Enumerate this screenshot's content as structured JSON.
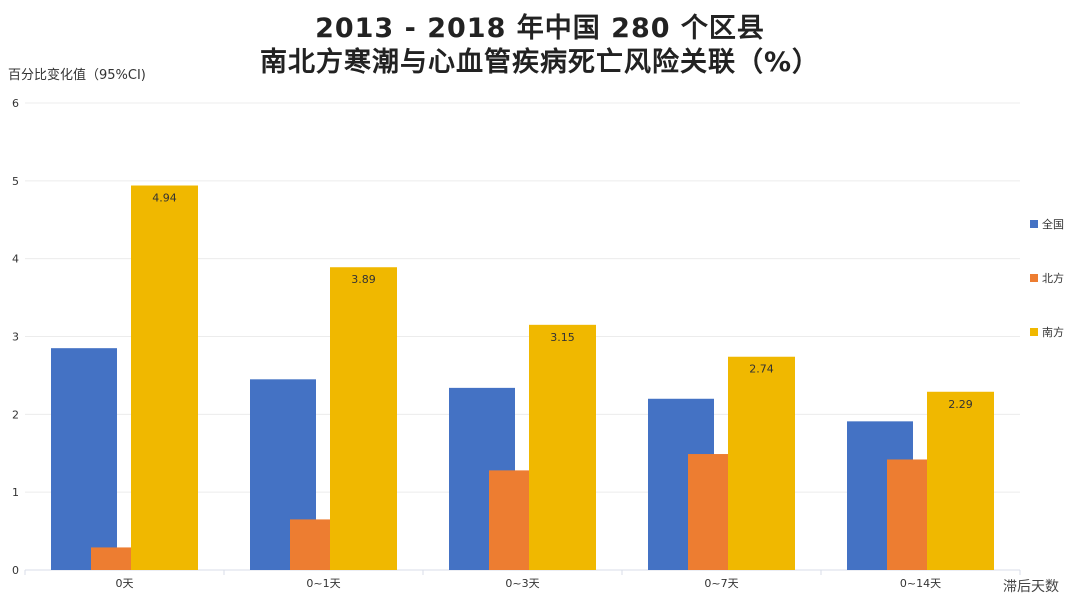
{
  "chart_data": {
    "type": "bar",
    "title_line1": "2013 - 2018 年中国 280 个区县",
    "title_line2": "南北方寒潮与心血管疾病死亡风险关联（%）",
    "ylabel": "百分比变化值（95%CI)",
    "xlabel": "滞后天数",
    "categories": [
      "0天",
      "0~1天",
      "0~3天",
      "0~7天",
      "0~14天"
    ],
    "ylim": [
      0,
      6
    ],
    "yticks": [
      "0",
      "1",
      "2",
      "3",
      "4",
      "5",
      "6"
    ],
    "grid": true,
    "legend_position": "right",
    "series": [
      {
        "name": "全国",
        "color": "#4472C4",
        "values": [
          2.85,
          2.45,
          2.34,
          2.2,
          1.91
        ]
      },
      {
        "name": "北方",
        "color": "#ED7D31",
        "values": [
          0.29,
          0.65,
          1.28,
          1.49,
          1.42
        ]
      },
      {
        "name": "南方",
        "color": "#F0B800",
        "values": [
          4.94,
          3.89,
          3.15,
          2.74,
          2.29
        ],
        "labels": [
          "4.94",
          "3.89",
          "3.15",
          "2.74",
          "2.29"
        ]
      }
    ]
  }
}
